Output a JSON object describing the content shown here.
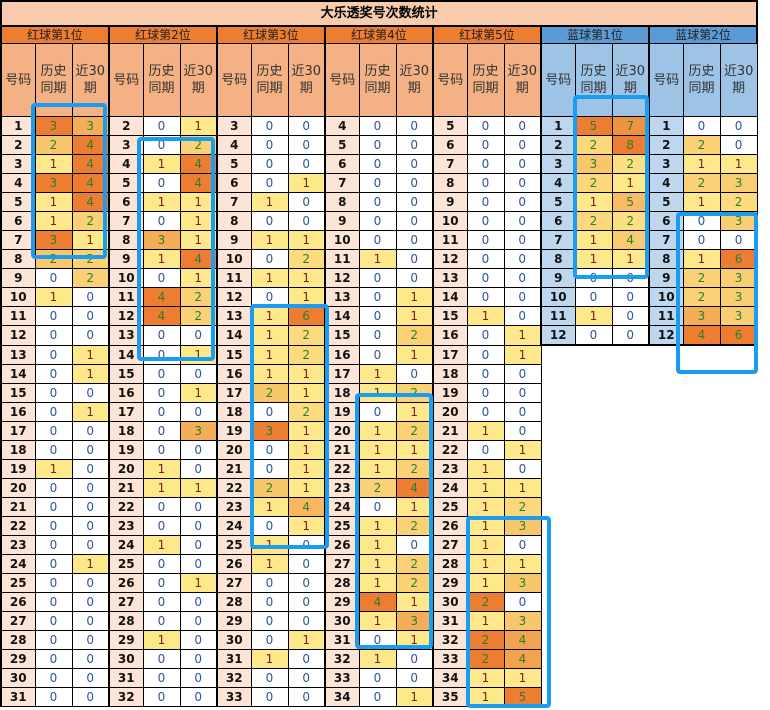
{
  "title": "大乐透奖号次数统计",
  "subheaders": {
    "number": "号码",
    "history": "历史同期",
    "recent": "近30期"
  },
  "colors": {
    "red_header": "#ed7d31",
    "blue_header": "#5b9bd5",
    "highlight": "#1a9cf0",
    "low": "#fee98a",
    "high": "#ed7d31"
  },
  "groups": [
    {
      "label": "红球第1位",
      "type": "red",
      "numbers": [
        1,
        2,
        3,
        4,
        5,
        6,
        7,
        8,
        9,
        10,
        11,
        12,
        13,
        14,
        15,
        16,
        17,
        18,
        19,
        20,
        21,
        22,
        23,
        24,
        25,
        26,
        27,
        28,
        29,
        30,
        31
      ],
      "history": [
        3,
        2,
        1,
        3,
        1,
        1,
        3,
        2,
        0,
        1,
        0,
        0,
        0,
        0,
        0,
        0,
        0,
        0,
        1,
        0,
        0,
        0,
        0,
        0,
        0,
        0,
        0,
        0,
        0,
        0,
        0
      ],
      "recent": [
        3,
        4,
        4,
        4,
        4,
        2,
        1,
        2,
        2,
        0,
        0,
        0,
        1,
        1,
        0,
        1,
        0,
        0,
        0,
        0,
        0,
        0,
        0,
        1,
        0,
        0,
        0,
        0,
        0,
        0,
        0
      ]
    },
    {
      "label": "红球第2位",
      "type": "red",
      "numbers": [
        2,
        3,
        4,
        5,
        6,
        7,
        8,
        9,
        10,
        11,
        12,
        13,
        14,
        15,
        16,
        17,
        18,
        19,
        20,
        21,
        22,
        23,
        24,
        25,
        26,
        27,
        28,
        29,
        30,
        31,
        32
      ],
      "history": [
        0,
        0,
        1,
        0,
        1,
        0,
        3,
        1,
        0,
        4,
        4,
        0,
        0,
        0,
        0,
        0,
        0,
        0,
        1,
        1,
        0,
        0,
        1,
        0,
        0,
        0,
        0,
        1,
        0,
        0,
        0
      ],
      "recent": [
        1,
        2,
        4,
        4,
        1,
        1,
        1,
        4,
        1,
        2,
        2,
        0,
        1,
        0,
        1,
        0,
        3,
        0,
        0,
        1,
        0,
        0,
        0,
        0,
        1,
        0,
        0,
        0,
        0,
        0,
        0
      ]
    },
    {
      "label": "红球第3位",
      "type": "red",
      "numbers": [
        3,
        4,
        5,
        6,
        7,
        8,
        9,
        10,
        11,
        12,
        13,
        14,
        15,
        16,
        17,
        18,
        19,
        20,
        21,
        22,
        23,
        24,
        25,
        26,
        27,
        28,
        29,
        30,
        31,
        32,
        33
      ],
      "history": [
        0,
        0,
        0,
        0,
        1,
        0,
        1,
        0,
        1,
        0,
        1,
        1,
        1,
        1,
        2,
        0,
        3,
        0,
        0,
        2,
        1,
        0,
        1,
        1,
        0,
        0,
        0,
        0,
        1,
        0,
        0
      ],
      "recent": [
        0,
        0,
        0,
        1,
        0,
        0,
        1,
        2,
        1,
        1,
        6,
        2,
        2,
        1,
        1,
        2,
        1,
        1,
        1,
        1,
        4,
        1,
        0,
        0,
        0,
        0,
        0,
        1,
        0,
        0,
        0
      ]
    },
    {
      "label": "红球第4位",
      "type": "red",
      "numbers": [
        4,
        5,
        6,
        7,
        8,
        9,
        10,
        11,
        12,
        13,
        14,
        15,
        16,
        17,
        18,
        19,
        20,
        21,
        22,
        23,
        24,
        25,
        26,
        27,
        28,
        29,
        30,
        31,
        32,
        33,
        34
      ],
      "history": [
        0,
        0,
        0,
        0,
        0,
        0,
        0,
        1,
        0,
        0,
        0,
        0,
        0,
        1,
        1,
        0,
        1,
        1,
        1,
        2,
        0,
        1,
        1,
        1,
        1,
        4,
        1,
        0,
        1,
        0,
        0
      ],
      "recent": [
        0,
        0,
        0,
        0,
        0,
        0,
        0,
        0,
        0,
        1,
        1,
        2,
        1,
        0,
        2,
        1,
        2,
        1,
        2,
        4,
        1,
        2,
        0,
        2,
        2,
        1,
        3,
        1,
        0,
        0,
        1
      ]
    },
    {
      "label": "红球第5位",
      "type": "red",
      "numbers": [
        5,
        6,
        7,
        8,
        9,
        10,
        11,
        12,
        13,
        14,
        15,
        16,
        17,
        18,
        19,
        20,
        21,
        22,
        23,
        24,
        25,
        26,
        27,
        28,
        29,
        30,
        31,
        32,
        33,
        34,
        35
      ],
      "history": [
        0,
        0,
        0,
        0,
        0,
        0,
        0,
        0,
        0,
        0,
        1,
        0,
        0,
        0,
        0,
        0,
        1,
        0,
        1,
        1,
        1,
        1,
        1,
        1,
        1,
        2,
        1,
        2,
        2,
        1,
        1
      ],
      "recent": [
        0,
        0,
        0,
        0,
        0,
        0,
        0,
        0,
        0,
        0,
        0,
        1,
        1,
        0,
        0,
        0,
        0,
        1,
        0,
        1,
        2,
        3,
        0,
        1,
        3,
        0,
        3,
        4,
        4,
        1,
        5
      ]
    },
    {
      "label": "蓝球第1位",
      "type": "blue",
      "numbers": [
        1,
        2,
        3,
        4,
        5,
        6,
        7,
        8,
        9,
        10,
        11,
        12
      ],
      "history": [
        5,
        2,
        3,
        2,
        1,
        2,
        1,
        1,
        0,
        0,
        1,
        0
      ],
      "recent": [
        7,
        8,
        2,
        1,
        5,
        2,
        4,
        1,
        0,
        0,
        0,
        0
      ]
    },
    {
      "label": "蓝球第2位",
      "type": "blue",
      "numbers": [
        1,
        2,
        3,
        4,
        5,
        6,
        7,
        8,
        9,
        10,
        11,
        12
      ],
      "history": [
        0,
        2,
        1,
        2,
        1,
        0,
        0,
        1,
        2,
        2,
        3,
        4
      ],
      "recent": [
        0,
        0,
        1,
        3,
        2,
        3,
        0,
        6,
        3,
        3,
        3,
        6
      ]
    }
  ]
}
